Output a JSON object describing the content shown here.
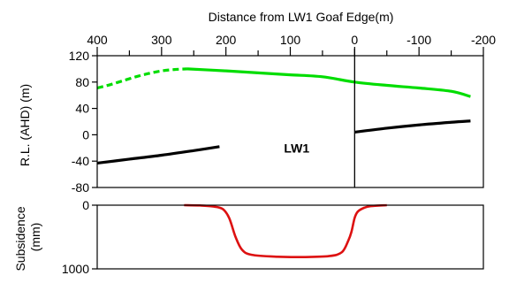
{
  "chart_data": [
    {
      "type": "line",
      "title": "",
      "xlabel": "Distance from LW1 Goaf Edge(m)",
      "ylabel": "R.L. (AHD) (m)",
      "xlim": [
        400,
        -200
      ],
      "ylim": [
        -80,
        120
      ],
      "x_ticks": [
        400,
        300,
        200,
        100,
        0,
        -100,
        -200
      ],
      "x_tick_labels": [
        "400",
        "300",
        "200",
        "100",
        "0",
        "-100",
        "-200"
      ],
      "y_ticks": [
        -80,
        -40,
        0,
        40,
        80,
        120
      ],
      "y_tick_labels": [
        "-80",
        "-40",
        "0",
        "40",
        "80",
        "120"
      ],
      "annotations": [
        {
          "text": "LW1",
          "x": 90,
          "y": -20
        }
      ],
      "reference_lines": [
        {
          "orientation": "vertical",
          "x": 0,
          "color": "#000000"
        }
      ],
      "series": [
        {
          "color": "#00dd00",
          "style": "dashed",
          "x": [
            400,
            380,
            360,
            340,
            320,
            300,
            280,
            260
          ],
          "y": [
            71,
            76,
            82,
            88,
            93,
            97,
            99,
            100
          ]
        },
        {
          "color": "#00dd00",
          "style": "solid",
          "x": [
            260,
            200,
            150,
            100,
            50,
            0,
            -50,
            -100,
            -150,
            -180
          ],
          "y": [
            100,
            97,
            94,
            91,
            88,
            80,
            75,
            71,
            66,
            58
          ]
        },
        {
          "color": "#000000",
          "style": "solid",
          "x": [
            400,
            350,
            300,
            250,
            210
          ],
          "y": [
            -43,
            -37,
            -31,
            -24,
            -18
          ]
        },
        {
          "color": "#000000",
          "style": "solid",
          "x": [
            0,
            -50,
            -100,
            -150,
            -180
          ],
          "y": [
            4,
            10,
            15,
            19,
            21
          ]
        }
      ]
    },
    {
      "type": "line",
      "title": "",
      "xlabel": "",
      "ylabel": "Subsidence (mm)",
      "ylabel_lines": [
        "Subsidence",
        "(mm)"
      ],
      "xlim": [
        400,
        -200
      ],
      "ylim": [
        0,
        1000
      ],
      "y_inverted": true,
      "y_ticks": [
        0,
        1000
      ],
      "y_tick_labels": [
        "0",
        "1000"
      ],
      "grid": false,
      "series": [
        {
          "color": "#dd1111",
          "style": "solid",
          "x": [
            265,
            240,
            220,
            205,
            195,
            185,
            175,
            160,
            120,
            80,
            40,
            20,
            10,
            5,
            0,
            -5,
            -15,
            -25,
            -50
          ],
          "y": [
            0,
            5,
            20,
            60,
            200,
            500,
            700,
            780,
            810,
            815,
            800,
            740,
            560,
            420,
            200,
            100,
            40,
            15,
            0
          ]
        }
      ]
    }
  ]
}
